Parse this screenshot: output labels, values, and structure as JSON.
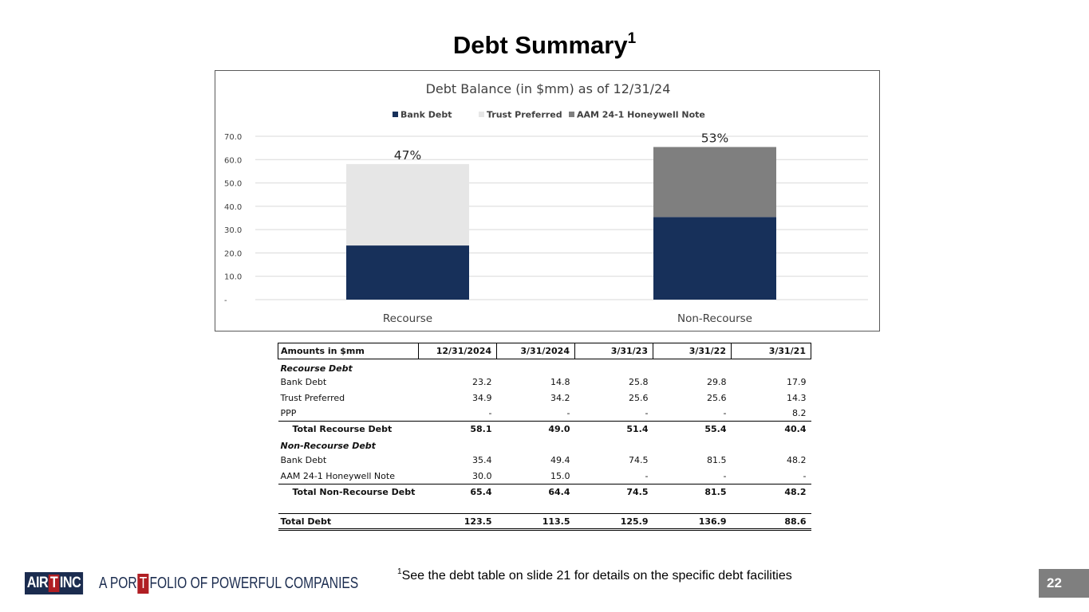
{
  "page": {
    "title": "Debt Summary",
    "title_sup": "1",
    "footnote_sup": "1",
    "footnote": "See the debt table on slide 21 for details on the specific debt facilities",
    "page_number": "22"
  },
  "logo": {
    "brand_left": "AIR",
    "brand_t": "T",
    "brand_right": "INC"
  },
  "tagline": {
    "before": "A POR",
    "boxed": "T",
    "after": "FOLIO OF POWERFUL COMPANIES"
  },
  "colors": {
    "bank_debt": "#17305a",
    "trust_preferred": "#e6e6e6",
    "honeywell_note": "#7f7f7f",
    "brand_navy": "#1b2c4f",
    "brand_red": "#b01e23"
  },
  "chart_data": {
    "type": "bar",
    "stacked": true,
    "title": "Debt Balance (in $mm) as of 12/31/24",
    "categories": [
      "Recourse",
      "Non-Recourse"
    ],
    "series": [
      {
        "name": "Bank Debt",
        "values": [
          23.2,
          35.4
        ]
      },
      {
        "name": "Trust Preferred",
        "values": [
          34.9,
          0
        ]
      },
      {
        "name": "AAM 24-1 Honeywell Note",
        "values": [
          0,
          30.0
        ]
      }
    ],
    "stack_labels": [
      "47%",
      "53%"
    ],
    "ylim": [
      0,
      70
    ],
    "yticks": [
      0,
      10,
      20,
      30,
      40,
      50,
      60,
      70
    ],
    "ytick_labels": [
      "-",
      "10.0",
      "20.0",
      "30.0",
      "40.0",
      "50.0",
      "60.0",
      "70.0"
    ],
    "legend_position": "top",
    "grid": true,
    "xlabel": "",
    "ylabel": ""
  },
  "table": {
    "header": [
      "Amounts in $mm",
      "12/31/2024",
      "3/31/2024",
      "3/31/23",
      "3/31/22",
      "3/31/21"
    ],
    "recourse_title": "Recourse Debt",
    "recourse_rows": [
      {
        "label": "Bank Debt",
        "values": [
          "23.2",
          "14.8",
          "25.8",
          "29.8",
          "17.9"
        ]
      },
      {
        "label": "Trust Preferred",
        "values": [
          "34.9",
          "34.2",
          "25.6",
          "25.6",
          "14.3"
        ]
      },
      {
        "label": "PPP",
        "values": [
          "-",
          "-",
          "-",
          "-",
          "8.2"
        ]
      }
    ],
    "recourse_total": {
      "label": "Total Recourse Debt",
      "values": [
        "58.1",
        "49.0",
        "51.4",
        "55.4",
        "40.4"
      ]
    },
    "nonrecourse_title": "Non-Recourse Debt",
    "nonrecourse_rows": [
      {
        "label": "Bank Debt",
        "values": [
          "35.4",
          "49.4",
          "74.5",
          "81.5",
          "48.2"
        ]
      },
      {
        "label": "AAM 24-1 Honeywell Note",
        "values": [
          "30.0",
          "15.0",
          "-",
          "-",
          "-"
        ]
      }
    ],
    "nonrecourse_total": {
      "label": "Total Non-Recourse Debt",
      "values": [
        "65.4",
        "64.4",
        "74.5",
        "81.5",
        "48.2"
      ]
    },
    "grand_total": {
      "label": "Total Debt",
      "values": [
        "123.5",
        "113.5",
        "125.9",
        "136.9",
        "88.6"
      ]
    }
  }
}
